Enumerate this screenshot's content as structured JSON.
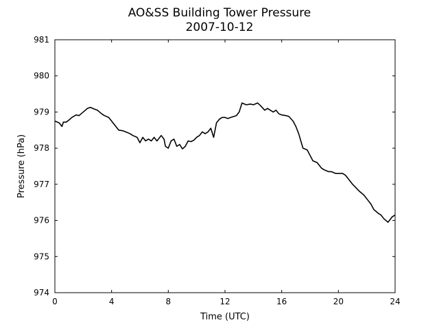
{
  "chart_data": {
    "type": "line",
    "title": "AO&SS Building Tower Pressure",
    "subtitle": "2007-10-12",
    "xlabel": "Time (UTC)",
    "ylabel": "Pressure (hPa)",
    "xlim": [
      0,
      24
    ],
    "ylim": [
      974,
      981
    ],
    "xticks": [
      0,
      4,
      8,
      12,
      16,
      20,
      24
    ],
    "xtick_labels": [
      "0",
      "4",
      "8",
      "12",
      "16",
      "20",
      "24"
    ],
    "yticks": [
      974,
      975,
      976,
      977,
      978,
      979,
      980,
      981
    ],
    "ytick_labels": [
      "974",
      "975",
      "976",
      "977",
      "978",
      "979",
      "980",
      "981"
    ],
    "grid": false,
    "series": [
      {
        "color": "#000000",
        "x": [
          0,
          0.3,
          0.5,
          0.6,
          0.8,
          1.0,
          1.2,
          1.5,
          1.7,
          2.0,
          2.3,
          2.5,
          2.8,
          3.0,
          3.3,
          3.5,
          3.8,
          4.0,
          4.3,
          4.5,
          4.8,
          5.0,
          5.3,
          5.5,
          5.8,
          6.0,
          6.2,
          6.4,
          6.6,
          6.8,
          7.0,
          7.2,
          7.5,
          7.7,
          7.8,
          8.0,
          8.2,
          8.4,
          8.6,
          8.8,
          9.0,
          9.2,
          9.4,
          9.6,
          9.8,
          10.0,
          10.2,
          10.4,
          10.6,
          10.8,
          11.0,
          11.2,
          11.4,
          11.6,
          11.8,
          12.0,
          12.2,
          12.4,
          12.8,
          13.0,
          13.2,
          13.5,
          13.8,
          14.0,
          14.3,
          14.5,
          14.8,
          15.0,
          15.2,
          15.4,
          15.6,
          15.8,
          16.0,
          16.3,
          16.5,
          16.8,
          17.0,
          17.2,
          17.5,
          17.8,
          18.0,
          18.2,
          18.5,
          18.8,
          19.0,
          19.3,
          19.5,
          19.8,
          20.0,
          20.3,
          20.5,
          20.8,
          21.0,
          21.2,
          21.5,
          21.8,
          22.0,
          22.3,
          22.5,
          22.8,
          23.0,
          23.2,
          23.5,
          23.8,
          24.0
        ],
        "y": [
          978.75,
          978.7,
          978.6,
          978.72,
          978.72,
          978.78,
          978.85,
          978.92,
          978.9,
          979.0,
          979.1,
          979.13,
          979.08,
          979.05,
          978.95,
          978.9,
          978.85,
          978.75,
          978.6,
          978.5,
          978.48,
          978.45,
          978.4,
          978.35,
          978.3,
          978.15,
          978.3,
          978.2,
          978.25,
          978.2,
          978.3,
          978.2,
          978.35,
          978.25,
          978.05,
          978.0,
          978.2,
          978.25,
          978.05,
          978.1,
          977.98,
          978.05,
          978.2,
          978.18,
          978.22,
          978.3,
          978.35,
          978.45,
          978.4,
          978.45,
          978.55,
          978.3,
          978.7,
          978.8,
          978.85,
          978.85,
          978.82,
          978.85,
          978.9,
          979.0,
          979.25,
          979.2,
          979.22,
          979.2,
          979.25,
          979.18,
          979.05,
          979.1,
          979.05,
          979.0,
          979.05,
          978.95,
          978.92,
          978.9,
          978.88,
          978.75,
          978.6,
          978.4,
          978.0,
          977.95,
          977.8,
          977.65,
          977.6,
          977.45,
          977.4,
          977.35,
          977.35,
          977.3,
          977.3,
          977.3,
          977.25,
          977.1,
          977.0,
          976.92,
          976.8,
          976.7,
          976.6,
          976.45,
          976.3,
          976.2,
          976.15,
          976.05,
          975.95,
          976.1,
          976.15
        ]
      }
    ]
  }
}
